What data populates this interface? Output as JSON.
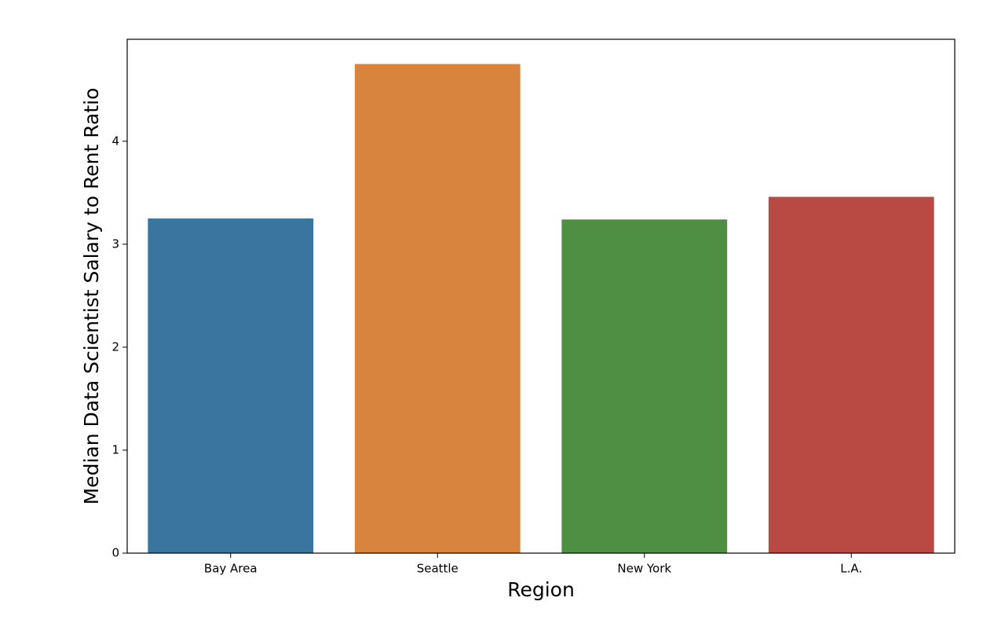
{
  "chart_data": {
    "type": "bar",
    "x_label": "Region",
    "y_label": "Median Data Scientist Salary to Rent Ratio",
    "categories": [
      "Bay Area",
      "Seattle",
      "New York",
      "L.A."
    ],
    "values": [
      3.25,
      4.75,
      3.24,
      3.46
    ],
    "colors": [
      "#3a75a0",
      "#d9843e",
      "#4e8f44",
      "#b84a43"
    ],
    "ylim": [
      0,
      4.99
    ],
    "yticks": [
      0,
      1,
      2,
      3,
      4
    ],
    "grid": false
  }
}
